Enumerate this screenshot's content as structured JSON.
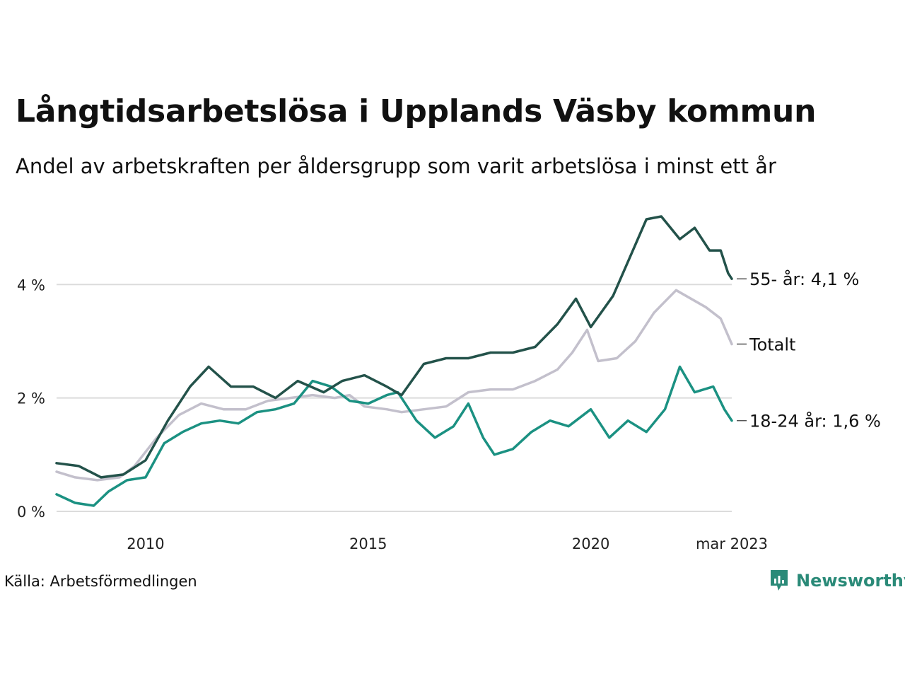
{
  "title": "Långtidsarbetslösa i Upplands Väsby kommun",
  "subtitle": "Andel av arbetskraften per åldersgrupp som varit arbetslösa i minst ett år",
  "source": "Källa: Arbetsförmedlingen",
  "brand": {
    "name": "Newsworthy",
    "icon": "newsworthy-logo-icon",
    "color": "#2a8a78"
  },
  "chart_data": {
    "type": "line",
    "title": "Långtidsarbetslösa i Upplands Väsby kommun",
    "subtitle": "Andel av arbetskraften per åldersgrupp som varit arbetslösa i minst ett år",
    "x_range": [
      "2008-01",
      "2023-03"
    ],
    "ylim": [
      0,
      5.4
    ],
    "y_ticks": [
      {
        "value": 0,
        "label": "0 %"
      },
      {
        "value": 2,
        "label": "2 %"
      },
      {
        "value": 4,
        "label": "4 %"
      }
    ],
    "x_ticks": [
      {
        "date": "2010-01",
        "label": "2010"
      },
      {
        "date": "2015-01",
        "label": "2015"
      },
      {
        "date": "2020-01",
        "label": "2020"
      },
      {
        "date": "2023-03",
        "label": "mar 2023"
      }
    ],
    "grid": "horizontal",
    "legend": "end-of-line labels",
    "series": [
      {
        "name": "Totalt",
        "end_label": "Totalt",
        "color": "#c3c0cc",
        "points": [
          [
            "2008-01",
            0.7
          ],
          [
            "2008-06",
            0.6
          ],
          [
            "2008-12",
            0.55
          ],
          [
            "2009-06",
            0.6
          ],
          [
            "2009-10",
            0.8
          ],
          [
            "2010-04",
            1.3
          ],
          [
            "2010-10",
            1.7
          ],
          [
            "2011-04",
            1.9
          ],
          [
            "2011-10",
            1.8
          ],
          [
            "2012-04",
            1.8
          ],
          [
            "2012-10",
            1.95
          ],
          [
            "2013-04",
            2.0
          ],
          [
            "2013-10",
            2.05
          ],
          [
            "2014-04",
            2.0
          ],
          [
            "2014-08",
            2.05
          ],
          [
            "2014-12",
            1.85
          ],
          [
            "2015-06",
            1.8
          ],
          [
            "2015-10",
            1.75
          ],
          [
            "2016-04",
            1.8
          ],
          [
            "2016-10",
            1.85
          ],
          [
            "2017-04",
            2.1
          ],
          [
            "2017-10",
            2.15
          ],
          [
            "2018-04",
            2.15
          ],
          [
            "2018-10",
            2.3
          ],
          [
            "2019-04",
            2.5
          ],
          [
            "2019-08",
            2.8
          ],
          [
            "2019-12",
            3.2
          ],
          [
            "2020-03",
            2.65
          ],
          [
            "2020-08",
            2.7
          ],
          [
            "2021-01",
            3.0
          ],
          [
            "2021-06",
            3.5
          ],
          [
            "2021-09",
            3.7
          ],
          [
            "2021-12",
            3.9
          ],
          [
            "2022-04",
            3.75
          ],
          [
            "2022-08",
            3.6
          ],
          [
            "2022-12",
            3.4
          ],
          [
            "2023-03",
            2.95
          ]
        ]
      },
      {
        "name": "18-24 år",
        "end_label": "18-24 år: 1,6 %",
        "color": "#1b9182",
        "points": [
          [
            "2008-01",
            0.3
          ],
          [
            "2008-06",
            0.15
          ],
          [
            "2008-11",
            0.1
          ],
          [
            "2009-03",
            0.35
          ],
          [
            "2009-08",
            0.55
          ],
          [
            "2010-01",
            0.6
          ],
          [
            "2010-06",
            1.2
          ],
          [
            "2010-11",
            1.4
          ],
          [
            "2011-04",
            1.55
          ],
          [
            "2011-09",
            1.6
          ],
          [
            "2012-02",
            1.55
          ],
          [
            "2012-07",
            1.75
          ],
          [
            "2012-12",
            1.8
          ],
          [
            "2013-05",
            1.9
          ],
          [
            "2013-10",
            2.3
          ],
          [
            "2014-03",
            2.2
          ],
          [
            "2014-08",
            1.95
          ],
          [
            "2015-01",
            1.9
          ],
          [
            "2015-06",
            2.05
          ],
          [
            "2015-09",
            2.1
          ],
          [
            "2016-02",
            1.6
          ],
          [
            "2016-07",
            1.3
          ],
          [
            "2016-12",
            1.5
          ],
          [
            "2017-04",
            1.9
          ],
          [
            "2017-08",
            1.3
          ],
          [
            "2017-11",
            1.0
          ],
          [
            "2018-04",
            1.1
          ],
          [
            "2018-09",
            1.4
          ],
          [
            "2019-02",
            1.6
          ],
          [
            "2019-07",
            1.5
          ],
          [
            "2020-01",
            1.8
          ],
          [
            "2020-06",
            1.3
          ],
          [
            "2020-11",
            1.6
          ],
          [
            "2021-04",
            1.4
          ],
          [
            "2021-09",
            1.8
          ],
          [
            "2022-01",
            2.55
          ],
          [
            "2022-05",
            2.1
          ],
          [
            "2022-10",
            2.2
          ],
          [
            "2023-01",
            1.8
          ],
          [
            "2023-03",
            1.6
          ]
        ]
      },
      {
        "name": "55- år",
        "end_label": "55- år: 4,1 %",
        "color": "#23524a",
        "points": [
          [
            "2008-01",
            0.85
          ],
          [
            "2008-07",
            0.8
          ],
          [
            "2009-01",
            0.6
          ],
          [
            "2009-07",
            0.65
          ],
          [
            "2010-01",
            0.9
          ],
          [
            "2010-07",
            1.6
          ],
          [
            "2011-01",
            2.2
          ],
          [
            "2011-06",
            2.55
          ],
          [
            "2011-12",
            2.2
          ],
          [
            "2012-06",
            2.2
          ],
          [
            "2012-12",
            2.0
          ],
          [
            "2013-06",
            2.3
          ],
          [
            "2014-01",
            2.1
          ],
          [
            "2014-06",
            2.3
          ],
          [
            "2014-12",
            2.4
          ],
          [
            "2015-06",
            2.2
          ],
          [
            "2015-10",
            2.05
          ],
          [
            "2016-04",
            2.6
          ],
          [
            "2016-10",
            2.7
          ],
          [
            "2017-04",
            2.7
          ],
          [
            "2017-10",
            2.8
          ],
          [
            "2018-04",
            2.8
          ],
          [
            "2018-10",
            2.9
          ],
          [
            "2019-04",
            3.3
          ],
          [
            "2019-09",
            3.75
          ],
          [
            "2020-01",
            3.25
          ],
          [
            "2020-07",
            3.8
          ],
          [
            "2020-11",
            4.4
          ],
          [
            "2021-04",
            5.15
          ],
          [
            "2021-08",
            5.2
          ],
          [
            "2022-01",
            4.8
          ],
          [
            "2022-05",
            5.0
          ],
          [
            "2022-09",
            4.6
          ],
          [
            "2022-12",
            4.6
          ],
          [
            "2023-02",
            4.2
          ],
          [
            "2023-03",
            4.1
          ]
        ]
      }
    ]
  }
}
